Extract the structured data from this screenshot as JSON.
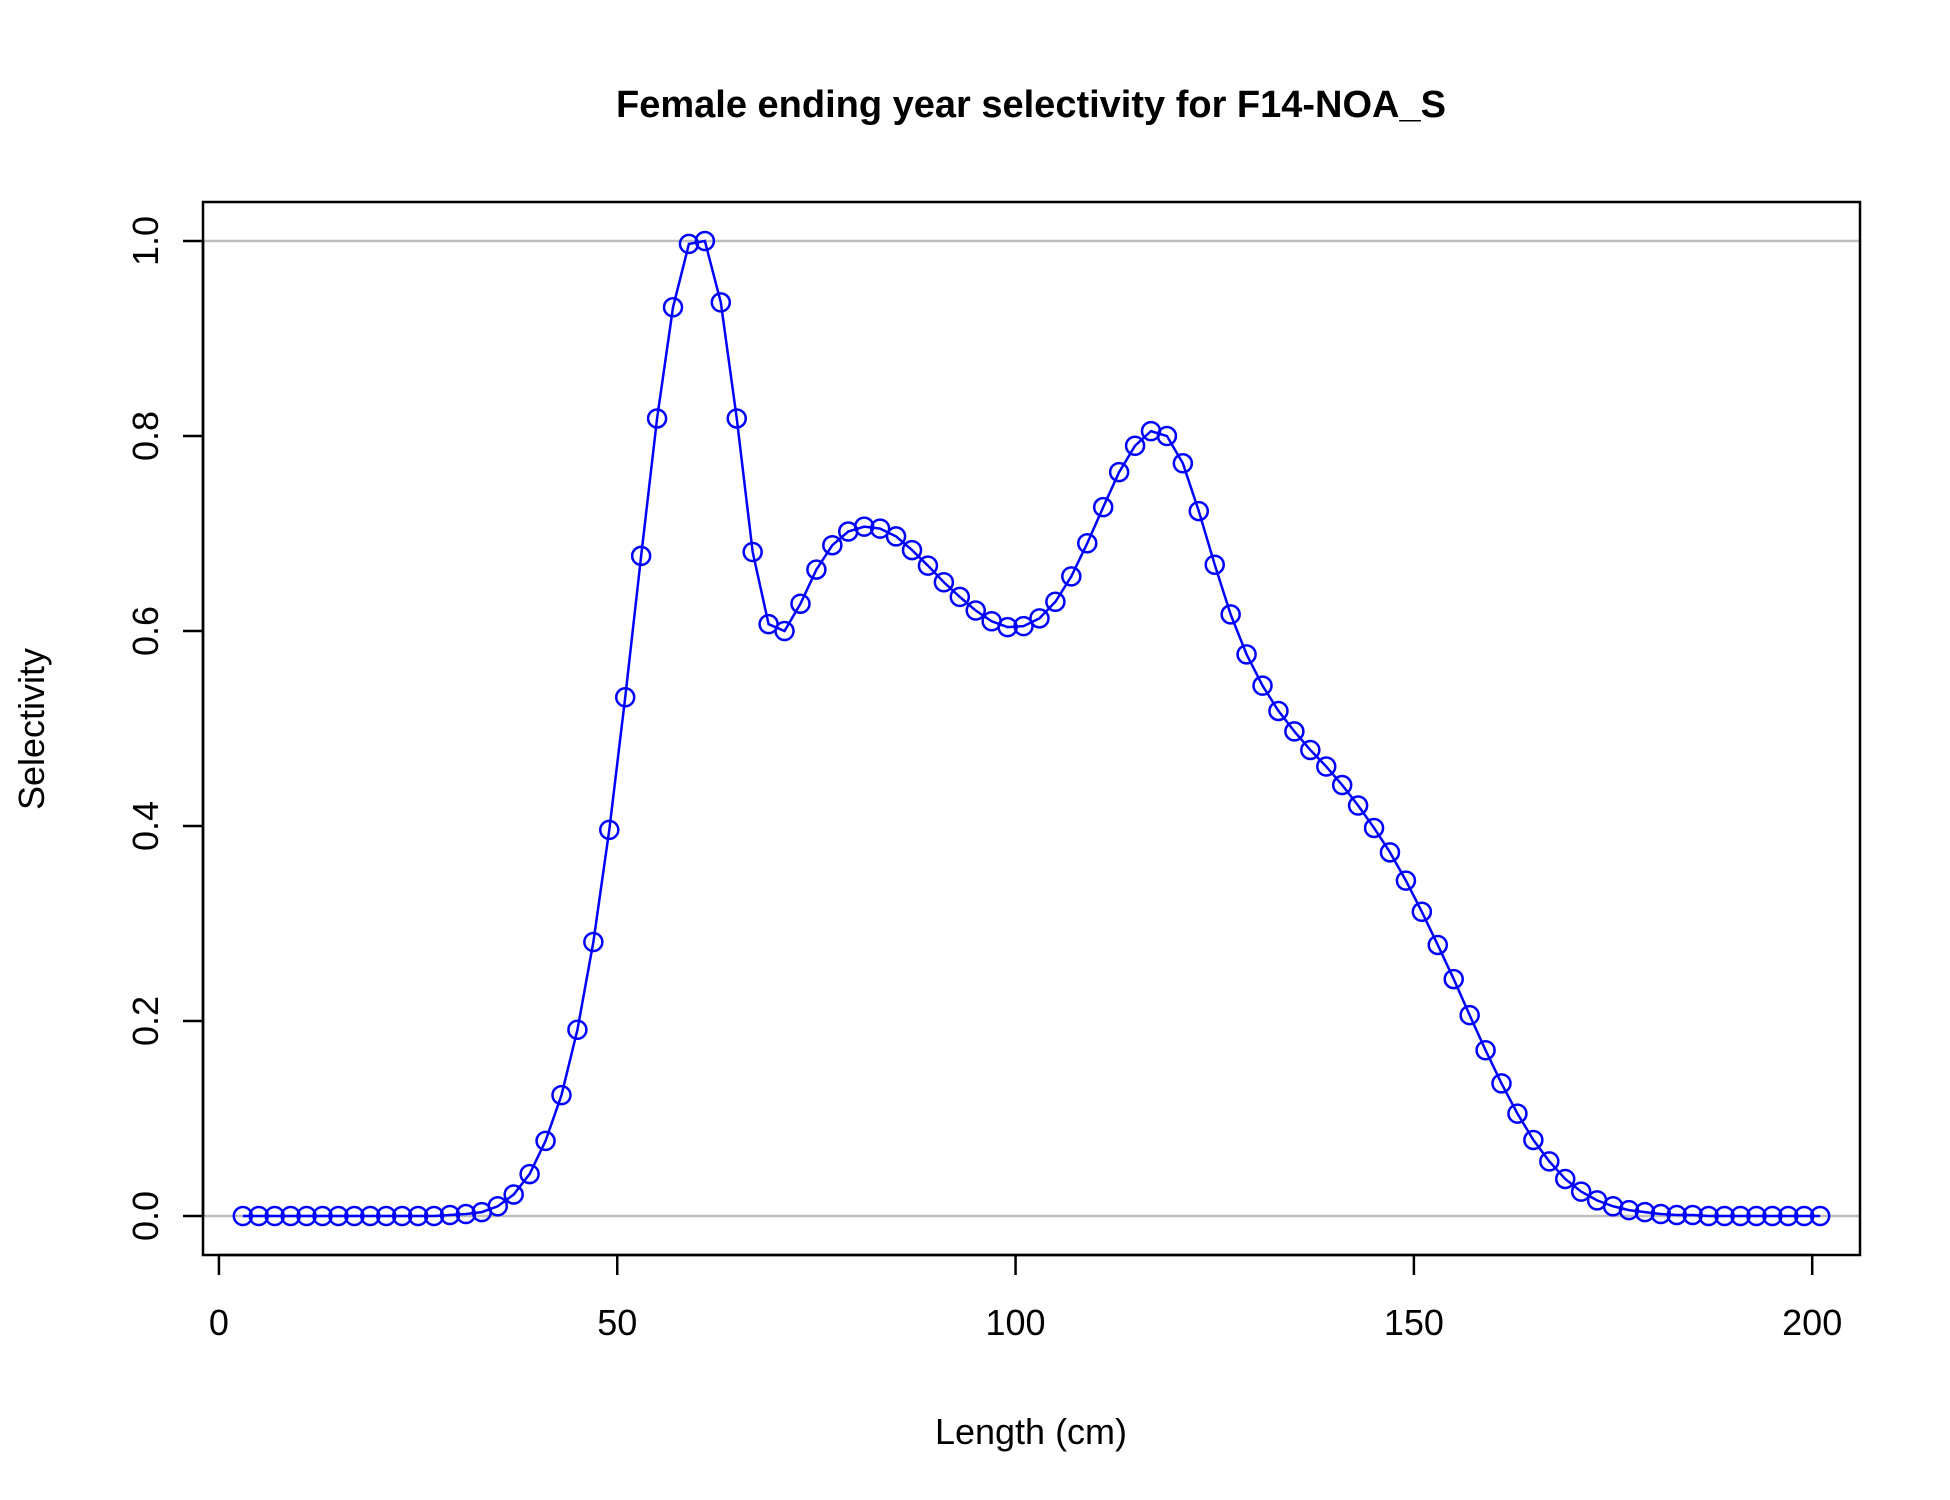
{
  "chart_data": {
    "type": "line",
    "title": "Female ending year selectivity for F14-NOA_S",
    "xlabel": "Length (cm)",
    "ylabel": "Selectivity",
    "xlim": [
      -2,
      206
    ],
    "ylim": [
      -0.04,
      1.04
    ],
    "x_ticks": [
      0,
      50,
      100,
      150,
      200
    ],
    "x_tick_labels": [
      "0",
      "50",
      "100",
      "150",
      "200"
    ],
    "y_ticks": [
      0.0,
      0.2,
      0.4,
      0.6,
      0.8,
      1.0
    ],
    "y_tick_labels": [
      "0.0",
      "0.2",
      "0.4",
      "0.6",
      "0.8",
      "1.0"
    ],
    "reference_lines_y": [
      0,
      1
    ],
    "grid": false,
    "legend": "none",
    "colors": {
      "series": "#0000ff",
      "reference": "#bebebe",
      "axes": "#000000"
    },
    "marker": "open-circle",
    "series": [
      {
        "x": [
          3,
          5,
          7,
          9,
          11,
          13,
          15,
          17,
          19,
          21,
          23,
          25,
          27,
          29,
          31,
          33,
          35,
          37,
          39,
          41,
          43,
          45,
          47,
          49,
          51,
          53,
          55,
          57,
          59,
          61,
          63,
          65,
          67,
          69,
          71,
          73,
          75,
          77,
          79,
          81,
          83,
          85,
          87,
          89,
          91,
          93,
          95,
          97,
          99,
          101,
          103,
          105,
          107,
          109,
          111,
          113,
          115,
          117,
          119,
          121,
          123,
          125,
          127,
          129,
          131,
          133,
          135,
          137,
          139,
          141,
          143,
          145,
          147,
          149,
          151,
          153,
          155,
          157,
          159,
          161,
          163,
          165,
          167,
          169,
          171,
          173,
          175,
          177,
          179,
          181,
          183,
          185,
          187,
          189,
          191,
          193,
          195,
          197,
          199,
          201
        ],
        "values": [
          0,
          0,
          0,
          0,
          0,
          0,
          0,
          0,
          0,
          0,
          0,
          0,
          0,
          0.001,
          0.002,
          0.004,
          0.01,
          0.022,
          0.043,
          0.077,
          0.124,
          0.191,
          0.281,
          0.396,
          0.532,
          0.677,
          0.818,
          0.932,
          0.997,
          1.0,
          0.937,
          0.818,
          0.681,
          0.607,
          0.6,
          0.628,
          0.663,
          0.688,
          0.702,
          0.707,
          0.705,
          0.697,
          0.683,
          0.667,
          0.65,
          0.635,
          0.621,
          0.61,
          0.604,
          0.605,
          0.613,
          0.63,
          0.656,
          0.69,
          0.727,
          0.763,
          0.79,
          0.805,
          0.8,
          0.772,
          0.723,
          0.668,
          0.617,
          0.576,
          0.544,
          0.518,
          0.497,
          0.478,
          0.461,
          0.442,
          0.421,
          0.398,
          0.373,
          0.344,
          0.312,
          0.278,
          0.243,
          0.206,
          0.17,
          0.136,
          0.105,
          0.078,
          0.056,
          0.038,
          0.025,
          0.016,
          0.01,
          0.006,
          0.004,
          0.002,
          0.001,
          0.001,
          0,
          0,
          0,
          0,
          0,
          0,
          0,
          0
        ]
      }
    ]
  }
}
